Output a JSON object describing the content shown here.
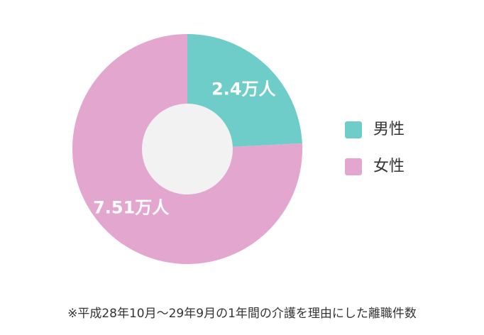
{
  "chart_data": {
    "type": "pie",
    "categories": [
      "男性",
      "女性"
    ],
    "values": [
      2.4,
      7.51
    ],
    "value_labels": [
      "2.4万人",
      "7.51万人"
    ],
    "colors": [
      "#6ecdc8",
      "#e3a6cf"
    ],
    "donut": true,
    "legend": "right",
    "annotation": "※平成28年10月～29年9月の1年間の介護を理由にした離職件数"
  }
}
